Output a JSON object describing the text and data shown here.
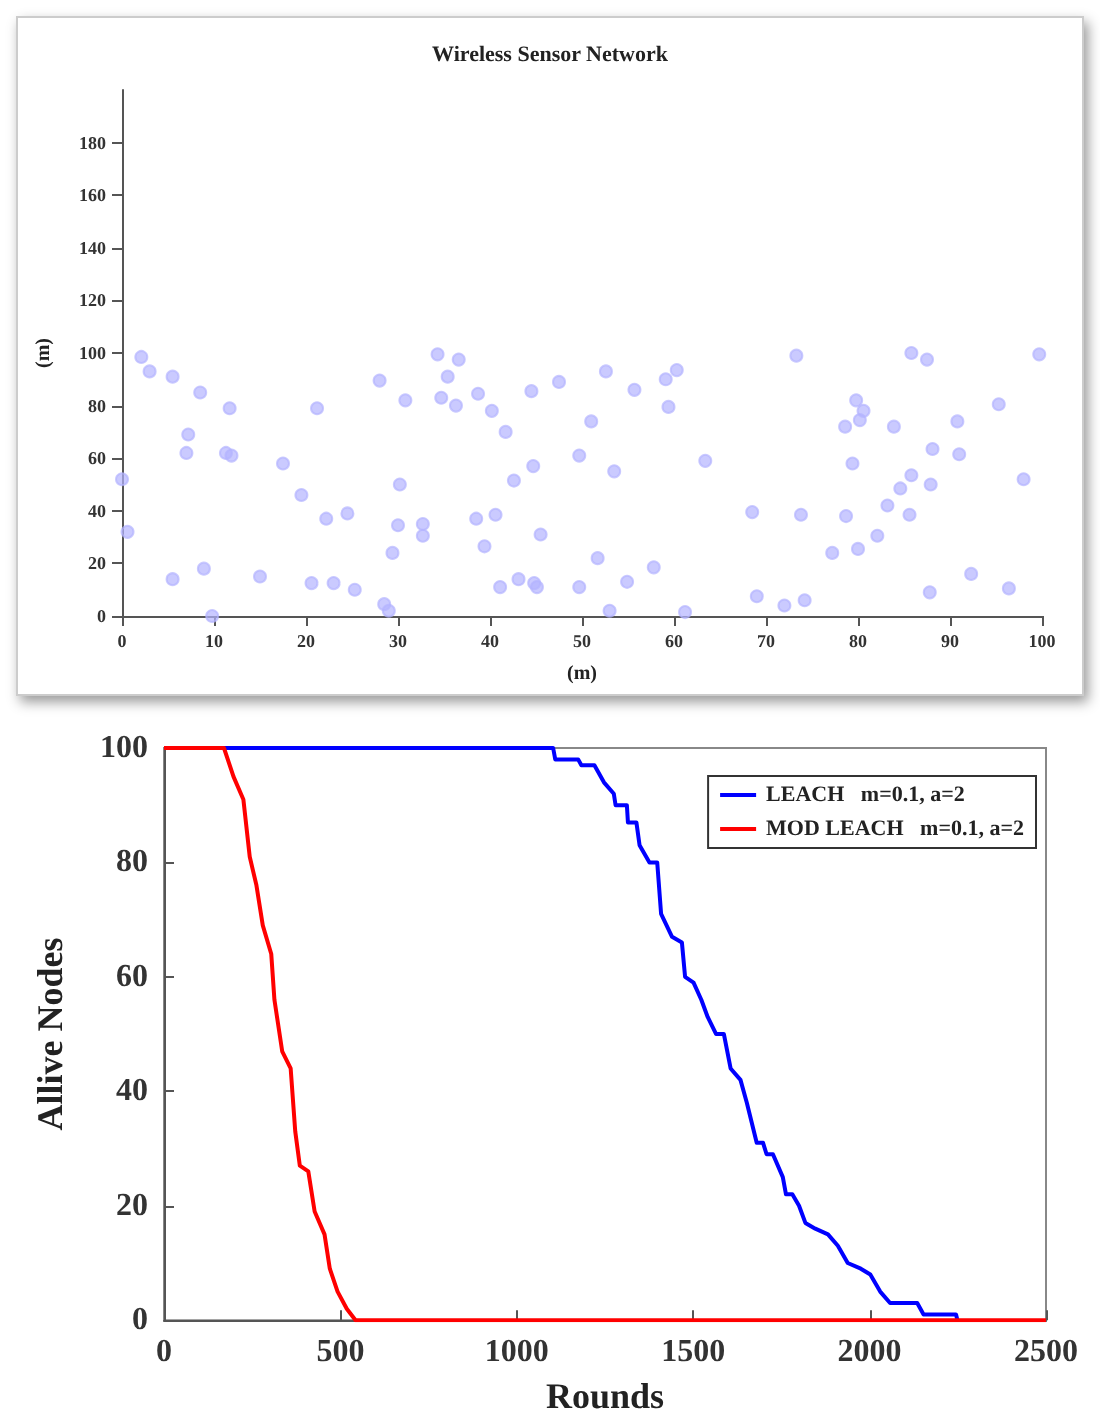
{
  "chart_data": [
    {
      "type": "scatter",
      "title": "Wireless Sensor Network",
      "xlabel": "(m)",
      "ylabel": "(m)",
      "xlim": [
        0,
        100
      ],
      "xticks": [
        0,
        10,
        20,
        30,
        40,
        50,
        60,
        70,
        80,
        90,
        100
      ],
      "ylim": [
        0,
        200
      ],
      "yticks": [
        0,
        20,
        40,
        60,
        80,
        100,
        120,
        140,
        160,
        180
      ],
      "marker": "circle",
      "series": [
        {
          "color": "#b4b4ff",
          "x": [
            2.1,
            3,
            5.5,
            8.5,
            11.7,
            7.2,
            7,
            11.3,
            11.9,
            0,
            0.6,
            5.5,
            8.9,
            9.8,
            15,
            17.5,
            19.5,
            21.2,
            20.6,
            22.2,
            23,
            24.5,
            25.3,
            28,
            28.5,
            29,
            29.4,
            30,
            30.2,
            30.8,
            32.7,
            32.7,
            34.3,
            34.7,
            35.4,
            36.3,
            36.6,
            38.7,
            38.5,
            39.4,
            40.2,
            40.6,
            41.1,
            41.7,
            42.6,
            43.1,
            44.5,
            44.7,
            44.8,
            45.1,
            45.5,
            47.5,
            49.7,
            49.7,
            51,
            52.6,
            53.5,
            51.7,
            53,
            54.9,
            55.7,
            57.8,
            59.1,
            59.4,
            60.3,
            61.2,
            63.4,
            68.5,
            69,
            72,
            73.3,
            73.8,
            74.2,
            77.2,
            78.6,
            78.7,
            79.4,
            79.8,
            80,
            80.2,
            80.6,
            82.1,
            83.2,
            83.9,
            84.6,
            85.6,
            85.8,
            85.8,
            87.5,
            87.8,
            87.9,
            88.1,
            90.8,
            91,
            92.3,
            95.3,
            96.4,
            98,
            99.7
          ],
          "values": [
            98.5,
            93,
            91,
            85,
            79,
            69,
            62,
            62,
            61,
            52,
            32,
            14,
            18,
            0,
            15,
            58,
            46,
            79,
            12.5,
            37,
            12.5,
            39,
            10,
            89.5,
            4.5,
            2,
            24,
            34.5,
            50,
            82,
            35,
            30.5,
            99.5,
            83,
            91,
            80,
            97.5,
            84.5,
            37,
            26.5,
            78,
            38.5,
            11,
            70,
            51.5,
            14,
            85.5,
            57,
            12.5,
            11,
            31,
            89,
            61,
            11,
            74,
            93,
            55,
            22,
            2,
            13,
            86,
            18.5,
            90,
            79.5,
            93.5,
            1.5,
            59,
            39.5,
            7.5,
            4,
            99,
            38.5,
            6,
            24,
            72,
            38,
            58,
            82,
            25.5,
            74.5,
            78,
            30.5,
            42,
            72,
            48.5,
            38.5,
            53.5,
            100,
            97.5,
            9,
            50,
            63.5,
            74,
            61.5,
            16,
            80.5,
            10.5,
            52,
            99.5
          ]
        }
      ]
    },
    {
      "type": "line",
      "xlabel": "Rounds",
      "ylabel": "Allive Nodes",
      "xlim": [
        0,
        2500
      ],
      "xticks": [
        0,
        500,
        1000,
        1500,
        2000,
        2500
      ],
      "ylim": [
        0,
        100
      ],
      "yticks": [
        0,
        20,
        40,
        60,
        80,
        100
      ],
      "legend": "top right",
      "marker": "none",
      "line_style": "solid",
      "series": [
        {
          "name": "LEACH   m=0.1, a=2",
          "color": "#0000ff",
          "x": [
            0,
            1103,
            1109,
            1174,
            1183,
            1220,
            1247,
            1275,
            1280,
            1312,
            1315,
            1339,
            1348,
            1376,
            1398,
            1409,
            1440,
            1468,
            1477,
            1501,
            1523,
            1541,
            1565,
            1587,
            1606,
            1634,
            1652,
            1680,
            1698,
            1708,
            1726,
            1754,
            1763,
            1781,
            1800,
            1818,
            1846,
            1882,
            1910,
            1938,
            1975,
            2002,
            2030,
            2058,
            2135,
            2153,
            2245,
            2249
          ],
          "values": [
            100,
            100,
            98,
            98,
            97,
            97,
            94,
            92,
            90,
            90,
            87,
            87,
            83,
            80,
            80,
            71,
            67,
            66,
            60,
            59,
            56,
            53,
            50,
            50,
            44,
            42,
            38,
            31,
            31,
            29,
            29,
            25,
            22,
            22,
            20,
            17,
            16,
            15,
            13,
            10,
            9,
            8,
            5,
            3,
            3,
            1,
            1,
            0
          ]
        },
        {
          "name": "MOD LEACH   m=0.1, a=2",
          "color": "#ff0000",
          "x": [
            0,
            170,
            197,
            225,
            243,
            262,
            280,
            304,
            313,
            335,
            359,
            372,
            385,
            409,
            427,
            455,
            470,
            492,
            518,
            543,
            2500
          ],
          "values": [
            100,
            100,
            95,
            91,
            81,
            76,
            69,
            64,
            56,
            47,
            44,
            33,
            27,
            26,
            19,
            15,
            9,
            5,
            2,
            0,
            0
          ]
        }
      ]
    }
  ]
}
